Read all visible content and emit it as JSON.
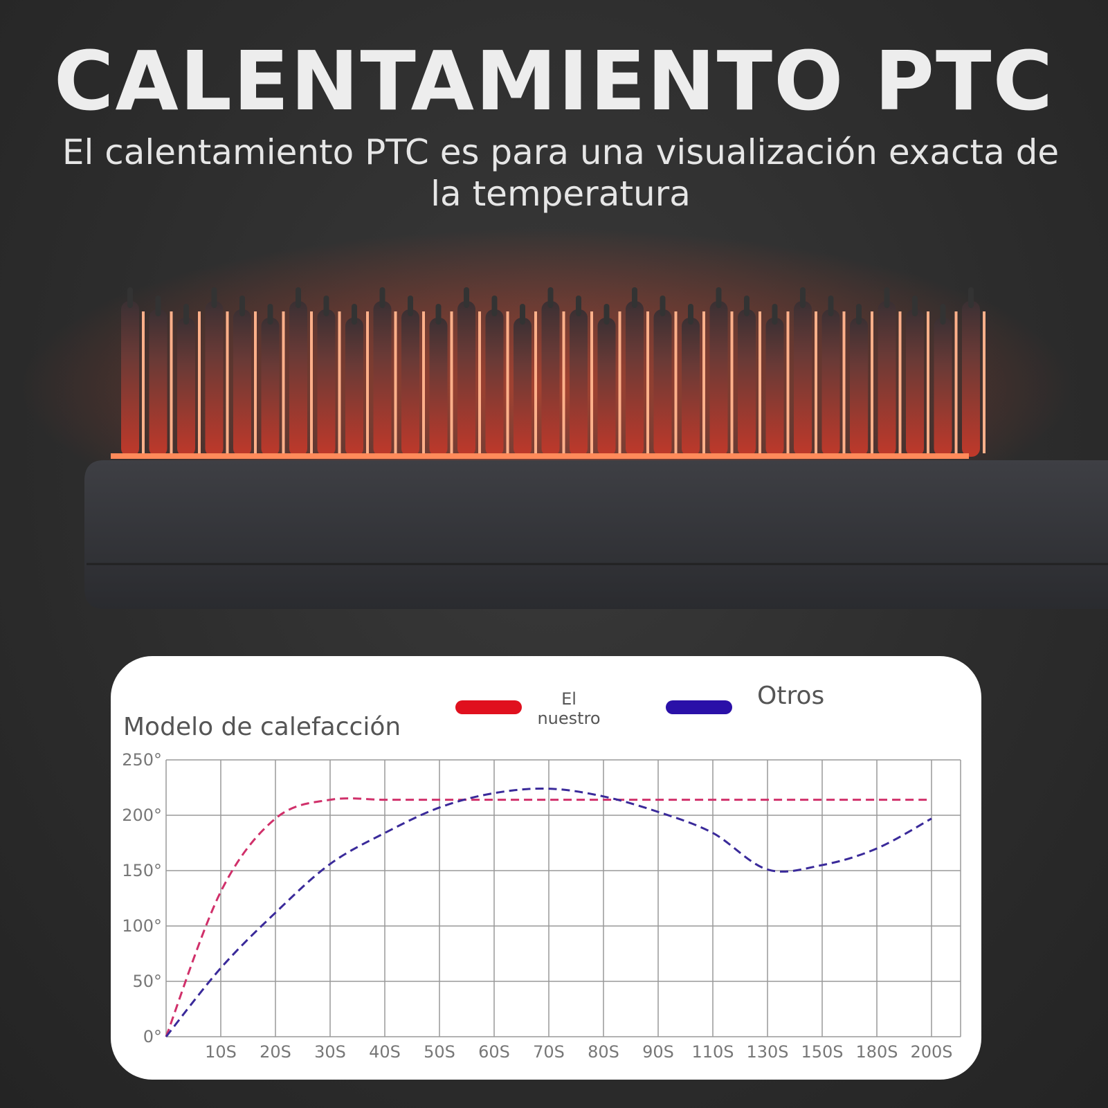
{
  "header": {
    "title": "CALENTAMIENTO PTC",
    "subtitle": "El calentamiento PTC es para una visualización exacta de la temperatura"
  },
  "chart_data": {
    "type": "line",
    "title": "Modelo de calefacción",
    "categories": [
      null,
      "10S",
      "20S",
      "30S",
      "40S",
      "50S",
      "60S",
      "70S",
      "80S",
      "90S",
      "110S",
      "130S",
      "150S",
      "180S",
      "200S"
    ],
    "series": [
      {
        "name": "El nuestro",
        "color": "#d0306a",
        "legend_color": "#e0101e",
        "values": [
          0,
          131,
          197,
          214,
          214,
          214,
          214,
          214,
          214,
          214,
          214,
          214,
          214,
          214,
          214
        ]
      },
      {
        "name": "Otros",
        "color": "#3a2a9a",
        "legend_color": "#2a10a8",
        "values": [
          0,
          62,
          112,
          156,
          184,
          207,
          220,
          224,
          217,
          203,
          184,
          151,
          155,
          170,
          197
        ]
      }
    ],
    "ylim": [
      0,
      250
    ],
    "yticks": [
      {
        "value": 0,
        "label": "0°"
      },
      {
        "value": 50,
        "label": "50°"
      },
      {
        "value": 100,
        "label": "100°"
      },
      {
        "value": 150,
        "label": "150°"
      },
      {
        "value": 200,
        "label": "200°"
      },
      {
        "value": 250,
        "label": "250°"
      }
    ],
    "grid": true
  }
}
